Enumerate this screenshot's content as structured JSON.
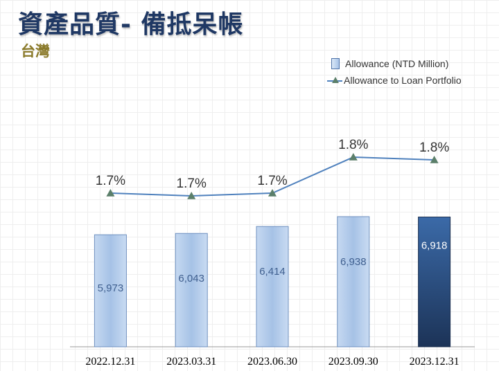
{
  "header": {
    "title": "資產品質- 備抵呆帳",
    "subtitle": "台灣"
  },
  "legend": {
    "bar_label": "Allowance  (NTD Million)",
    "line_label": "Allowance to Loan Portfolio"
  },
  "chart_data": {
    "type": "bar",
    "categories": [
      "2022.12.31",
      "2023.03.31",
      "2023.06.30",
      "2023.09.30",
      "2023.12.31"
    ],
    "series": [
      {
        "name": "Allowance  (NTD Million)",
        "type": "bar",
        "values": [
          5973,
          6043,
          6414,
          6938,
          6918
        ],
        "labels": [
          "5,973",
          "6,043",
          "6,414",
          "6,938",
          "6,918"
        ]
      },
      {
        "name": "Allowance to Loan Portfolio",
        "type": "line",
        "values": [
          1.7,
          1.7,
          1.7,
          1.8,
          1.8
        ],
        "labels": [
          "1.7%",
          "1.7%",
          "1.7%",
          "1.8%",
          "1.8%"
        ]
      }
    ],
    "highlight_index": 4,
    "colors": {
      "bar": "#a6c2e6",
      "bar_highlight": "#2b4f82",
      "line": "#4f81bd",
      "marker": "#5b7f6a"
    },
    "legend_position": "top-right",
    "grid": false
  }
}
